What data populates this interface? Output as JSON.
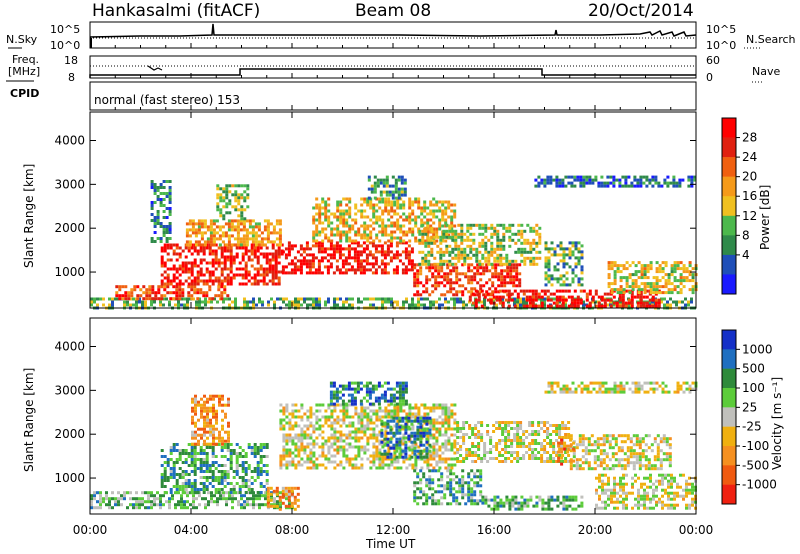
{
  "header": {
    "station": "Hankasalmi (fitACF)",
    "beam": "Beam 08",
    "date": "20/Oct/2014"
  },
  "summary_panels": {
    "nsky_label": "N.Sky",
    "nsky_ticks": [
      "10^5",
      "10^0"
    ],
    "nsearch_label": "N.Search",
    "nsearch_ticks": [
      "10^5",
      "10^0"
    ],
    "freq_label_1": "Freq.",
    "freq_label_2": "[MHz]",
    "freq_ticks": [
      "18",
      "8"
    ],
    "nave_label": "Nave",
    "nave_ticks": [
      "60",
      "0"
    ],
    "cpid_label": "CPID",
    "cpid_text": "normal (fast stereo) 153"
  },
  "colors": {
    "power": [
      "#1a1aff",
      "#1f4fb8",
      "#2f8a4a",
      "#4cb84c",
      "#f0c020",
      "#f59a1a",
      "#f06010",
      "#e02010",
      "#ff0000"
    ],
    "velocity": [
      "#1430c8",
      "#1f6fc0",
      "#2e8a3a",
      "#5ccc3a",
      "#c0c0bc",
      "#f0b010",
      "#f59020",
      "#f05a10",
      "#f02010"
    ],
    "axis": "#000000"
  },
  "chart_data": [
    {
      "type": "heatmap",
      "name": "power",
      "ylabel": "Slant Range [km]",
      "x_ticks": [
        "00:00",
        "04:00",
        "08:00",
        "12:00",
        "16:00",
        "20:00",
        "00:00"
      ],
      "xlim_hours": [
        0,
        24
      ],
      "y_ticks": [
        1000,
        2000,
        3000,
        4000
      ],
      "ylim": [
        180,
        4650
      ],
      "colorbar": {
        "label": "Power [dB]",
        "ticks": [
          "28",
          "24",
          "20",
          "16",
          "12",
          "8",
          "4"
        ],
        "range": [
          0,
          32
        ]
      },
      "regions": [
        {
          "t0": 0.0,
          "t1": 24.0,
          "r0": 190,
          "r1": 420,
          "level": 0.35
        },
        {
          "t0": 1.0,
          "t1": 5.5,
          "r0": 380,
          "r1": 700,
          "level": 0.8
        },
        {
          "t0": 2.8,
          "t1": 7.6,
          "r0": 700,
          "r1": 1650,
          "level": 0.88
        },
        {
          "t0": 3.8,
          "t1": 7.6,
          "r0": 1650,
          "r1": 2200,
          "level": 0.6
        },
        {
          "t0": 5.0,
          "t1": 6.2,
          "r0": 2200,
          "r1": 3000,
          "level": 0.4
        },
        {
          "t0": 7.6,
          "t1": 12.8,
          "r0": 1000,
          "r1": 1700,
          "level": 0.9
        },
        {
          "t0": 8.8,
          "t1": 14.5,
          "r0": 1700,
          "r1": 2700,
          "level": 0.55
        },
        {
          "t0": 11.0,
          "t1": 12.5,
          "r0": 2700,
          "r1": 3200,
          "level": 0.3
        },
        {
          "t0": 12.8,
          "t1": 17.0,
          "r0": 500,
          "r1": 1200,
          "level": 0.82
        },
        {
          "t0": 13.0,
          "t1": 17.8,
          "r0": 1200,
          "r1": 2100,
          "level": 0.45
        },
        {
          "t0": 15.0,
          "t1": 22.5,
          "r0": 250,
          "r1": 600,
          "level": 0.92
        },
        {
          "t0": 17.6,
          "t1": 24.0,
          "r0": 2950,
          "r1": 3200,
          "level": 0.2
        },
        {
          "t0": 20.5,
          "t1": 24.0,
          "r0": 500,
          "r1": 1250,
          "level": 0.5
        },
        {
          "t0": 18.0,
          "t1": 19.5,
          "r0": 700,
          "r1": 1700,
          "level": 0.35
        },
        {
          "t0": 2.4,
          "t1": 3.2,
          "r0": 1700,
          "r1": 3100,
          "level": 0.25
        }
      ]
    },
    {
      "type": "heatmap",
      "name": "velocity",
      "ylabel": "Slant Range [km]",
      "xlabel": "Time UT",
      "x_ticks": [
        "00:00",
        "04:00",
        "08:00",
        "12:00",
        "16:00",
        "20:00",
        "00:00"
      ],
      "xlim_hours": [
        0,
        24
      ],
      "y_ticks": [
        1000,
        2000,
        3000,
        4000
      ],
      "ylim": [
        180,
        4650
      ],
      "colorbar": {
        "label": "Velocity [m s⁻¹]",
        "ticks": [
          "1000",
          "500",
          "100",
          "25",
          "-25",
          "-100",
          "-500",
          "-1000"
        ],
        "range": [
          -1000,
          1000
        ]
      },
      "regions": [
        {
          "t0": 0.0,
          "t1": 8.0,
          "r0": 300,
          "r1": 700,
          "level": 0.62
        },
        {
          "t0": 2.8,
          "t1": 7.0,
          "r0": 700,
          "r1": 1800,
          "level": 0.7
        },
        {
          "t0": 4.0,
          "t1": 5.5,
          "r0": 1800,
          "r1": 2900,
          "level": 0.3
        },
        {
          "t0": 7.0,
          "t1": 8.2,
          "r0": 300,
          "r1": 800,
          "level": 0.28
        },
        {
          "t0": 7.5,
          "t1": 14.5,
          "r0": 1200,
          "r1": 2700,
          "level": 0.48
        },
        {
          "t0": 9.5,
          "t1": 12.5,
          "r0": 2700,
          "r1": 3200,
          "level": 0.78
        },
        {
          "t0": 11.5,
          "t1": 13.5,
          "r0": 1500,
          "r1": 2400,
          "level": 0.8
        },
        {
          "t0": 12.8,
          "t1": 15.5,
          "r0": 400,
          "r1": 1200,
          "level": 0.68
        },
        {
          "t0": 14.5,
          "t1": 19.0,
          "r0": 1400,
          "r1": 2300,
          "level": 0.48
        },
        {
          "t0": 15.5,
          "t1": 19.5,
          "r0": 300,
          "r1": 600,
          "level": 0.66
        },
        {
          "t0": 20.0,
          "t1": 24.0,
          "r0": 300,
          "r1": 1100,
          "level": 0.48
        },
        {
          "t0": 19.0,
          "t1": 23.0,
          "r0": 1200,
          "r1": 2000,
          "level": 0.48
        },
        {
          "t0": 18.5,
          "t1": 19.2,
          "r0": 1300,
          "r1": 1900,
          "level": 0.2
        },
        {
          "t0": 18.0,
          "t1": 24.0,
          "r0": 2950,
          "r1": 3200,
          "level": 0.48
        }
      ]
    }
  ]
}
